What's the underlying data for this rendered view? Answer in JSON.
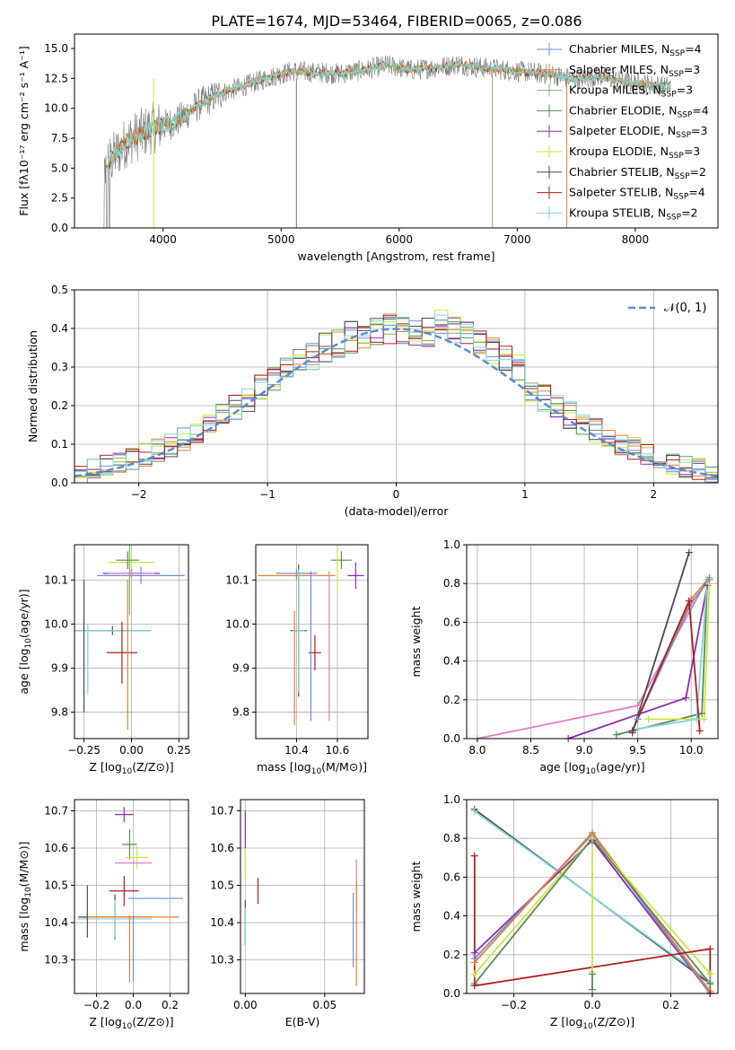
{
  "figure": {
    "title": "PLATE=1674, MJD=53464, FIBERID=0065, z=0.086"
  },
  "colors": {
    "chabrier_miles": "#6b8fd6",
    "salpeter_miles": "#ee7f2f",
    "kroupa_miles": "#7eb26d",
    "chabrier_elodie": "#5a8a5a",
    "salpeter_elodie": "#8e2bb0",
    "kroupa_elodie": "#c9e640",
    "chabrier_stelib": "#4a4a4a",
    "salpeter_stelib": "#b01c1c",
    "kroupa_stelib": "#7fd8dc",
    "extra_pink": "#e07cc2",
    "normal_line": "#5b8bd0",
    "spectrum_gray": "#777777"
  },
  "chart_data": [
    {
      "id": "spectrum",
      "type": "line",
      "xlabel": "wavelength [Angstrom, rest frame]",
      "ylabel": "Flux [fλ10⁻¹⁷ erg cm⁻² s⁻¹ A⁻¹]",
      "xlim": [
        3250,
        8700
      ],
      "ylim": [
        0,
        16.2
      ],
      "xticks": [
        4000,
        5000,
        6000,
        7000,
        8000
      ],
      "xtick_labels": [
        "4000",
        "5000",
        "6000",
        "7000",
        "8000"
      ],
      "yticks": [
        0,
        2.5,
        5,
        7.5,
        10,
        12.5,
        15
      ],
      "ytick_labels": [
        "0.0",
        "2.5",
        "5.0",
        "7.5",
        "10.0",
        "12.5",
        "15.0"
      ],
      "grid": false,
      "legend": "right",
      "continuum_x": [
        3500,
        3700,
        3900,
        4000,
        4100,
        4300,
        4500,
        4700,
        4900,
        5100,
        5300,
        5500,
        5700,
        5900,
        6100,
        6300,
        6500,
        6700,
        6900,
        7100,
        7300,
        7500,
        7700,
        7900,
        8100,
        8300
      ],
      "continuum_y": [
        5.0,
        7.3,
        8.3,
        8.6,
        8.8,
        10.3,
        11.3,
        11.9,
        12.6,
        13.1,
        13.0,
        12.9,
        13.2,
        13.6,
        13.2,
        13.4,
        13.7,
        13.4,
        13.2,
        13.0,
        12.8,
        12.4,
        12.7,
        12.2,
        12.0,
        11.8
      ],
      "series": [
        {
          "name": "Chabrier MILES, N_SSP=4",
          "label_main": "Chabrier MILES, N",
          "label_sub": "SSP",
          "label_tail": "=4"
        },
        {
          "name": "Salpeter MILES, N_SSP=3",
          "label_main": "Salpeter MILES, N",
          "label_sub": "SSP",
          "label_tail": "=3"
        },
        {
          "name": "Kroupa MILES, N_SSP=3",
          "label_main": "Kroupa MILES, N",
          "label_sub": "SSP",
          "label_tail": "=3"
        },
        {
          "name": "Chabrier ELODIE, N_SSP=4",
          "label_main": "Chabrier ELODIE, N",
          "label_sub": "SSP",
          "label_tail": "=4"
        },
        {
          "name": "Salpeter ELODIE, N_SSP=3",
          "label_main": "Salpeter ELODIE, N",
          "label_sub": "SSP",
          "label_tail": "=3"
        },
        {
          "name": "Kroupa ELODIE, N_SSP=3",
          "label_main": "Kroupa ELODIE, N",
          "label_sub": "SSP",
          "label_tail": "=3"
        },
        {
          "name": "Chabrier STELIB, N_SSP=2",
          "label_main": "Chabrier STELIB, N",
          "label_sub": "SSP",
          "label_tail": "=2"
        },
        {
          "name": "Salpeter STELIB, N_SSP=4",
          "label_main": "Salpeter STELIB, N",
          "label_sub": "SSP",
          "label_tail": "=4"
        },
        {
          "name": "Kroupa STELIB, N_SSP=2",
          "label_main": "Kroupa STELIB, N",
          "label_sub": "SSP",
          "label_tail": "=2"
        }
      ]
    },
    {
      "id": "histogram",
      "type": "line",
      "xlabel": "(data-model)/error",
      "ylabel": "Normed distribution",
      "xlim": [
        -2.5,
        2.5
      ],
      "ylim": [
        0,
        0.5
      ],
      "xticks": [
        -2,
        -1,
        0,
        1,
        2
      ],
      "xtick_labels": [
        "−2",
        "−1",
        "0",
        "1",
        "2"
      ],
      "yticks": [
        0,
        0.1,
        0.2,
        0.3,
        0.4,
        0.5
      ],
      "ytick_labels": [
        "0.0",
        "0.1",
        "0.2",
        "0.3",
        "0.4",
        "0.5"
      ],
      "grid": true,
      "legend": "top-right",
      "normal_label": "𝒩(0, 1)",
      "normal_mean": 0,
      "normal_sigma": 1,
      "bin_width": 0.1
    },
    {
      "id": "age_vs_z",
      "type": "scatter",
      "xlabel": "Z [log10(Z/Z⊙)]",
      "xlabel_main": "Z [log",
      "xlabel_sub": "10",
      "xlabel_tail": "(Z/Z⊙)]",
      "ylabel": "age [log10(age/yr)]",
      "ylabel_main": "age  [log",
      "ylabel_sub": "10",
      "ylabel_tail": "(age/yr)]",
      "xlim": [
        -0.3,
        0.3
      ],
      "ylim": [
        9.74,
        10.18
      ],
      "xticks": [
        -0.25,
        0,
        0.25
      ],
      "xtick_labels": [
        "−0.25",
        "0.00",
        "0.25"
      ],
      "yticks": [
        9.8,
        9.9,
        10.0,
        10.1
      ],
      "ytick_labels": [
        "9.8",
        "9.9",
        "10.0",
        "10.1"
      ],
      "grid": true,
      "points": [
        {
          "x": 0.0,
          "y": 10.14,
          "xerr": 0.12,
          "yerr": 0.03,
          "c": "kroupa_elodie"
        },
        {
          "x": -0.02,
          "y": 10.145,
          "xerr": 0.06,
          "yerr": 0.02,
          "c": "chabrier_elodie"
        },
        {
          "x": 0.05,
          "y": 10.11,
          "xerr": 0.23,
          "yerr": 0.02,
          "c": "chabrier_miles"
        },
        {
          "x": 0.0,
          "y": 10.115,
          "xerr": 0.15,
          "yerr": 0.01,
          "c": "salpeter_elodie"
        },
        {
          "x": 0.0,
          "y": 10.115,
          "xerr": 0.12,
          "yerr": 0.01,
          "c": "extra_pink"
        },
        {
          "x": -0.1,
          "y": 9.985,
          "xerr": 0.2,
          "yerr": 0.01,
          "c": "chabrier_stelib"
        },
        {
          "x": -0.1,
          "y": 9.985,
          "xerr": 0.2,
          "yerr": 0.0,
          "c": "kroupa_stelib"
        },
        {
          "x": -0.25,
          "y": 9.95,
          "xerr": 0.0,
          "yerr": 0.15,
          "c": "chabrier_stelib"
        },
        {
          "x": -0.23,
          "y": 9.92,
          "xerr": 0.0,
          "yerr": 0.08,
          "c": "kroupa_stelib"
        },
        {
          "x": -0.05,
          "y": 9.935,
          "xerr": 0.08,
          "yerr": 0.07,
          "c": "salpeter_stelib"
        },
        {
          "x": -0.02,
          "y": 9.93,
          "xerr": 0.0,
          "yerr": 0.17,
          "c": "salpeter_miles"
        },
        {
          "x": -0.01,
          "y": 10.1,
          "xerr": 0.0,
          "yerr": 0.08,
          "c": "kroupa_miles"
        }
      ]
    },
    {
      "id": "age_vs_mass",
      "type": "scatter",
      "xlabel": "mass [log10(M/M⊙)]",
      "xlabel_main": "mass [log",
      "xlabel_sub": "10",
      "xlabel_tail": "(M/M⊙)]",
      "ylabel": "",
      "xlim": [
        10.2,
        10.75
      ],
      "ylim": [
        9.74,
        10.18
      ],
      "xticks": [
        10.4,
        10.6
      ],
      "xtick_labels": [
        "10.4",
        "10.6"
      ],
      "yticks": [
        9.8,
        9.9,
        10.0,
        10.1
      ],
      "ytick_labels": [
        "9.8",
        "9.9",
        "10.0",
        "10.1"
      ],
      "grid": true,
      "points": [
        {
          "x": 10.62,
          "y": 10.145,
          "xerr": 0.05,
          "yerr": 0.02,
          "c": "chabrier_elodie"
        },
        {
          "x": 10.6,
          "y": 10.12,
          "xerr": 0.0,
          "yerr": 0.05,
          "c": "kroupa_elodie"
        },
        {
          "x": 10.69,
          "y": 10.11,
          "xerr": 0.04,
          "yerr": 0.03,
          "c": "salpeter_elodie"
        },
        {
          "x": 10.4,
          "y": 10.11,
          "xerr": 0.19,
          "yerr": 0.01,
          "c": "salpeter_miles"
        },
        {
          "x": 10.4,
          "y": 10.115,
          "xerr": 0.1,
          "yerr": 0.01,
          "c": "chabrier_miles"
        },
        {
          "x": 10.41,
          "y": 9.985,
          "xerr": 0.04,
          "yerr": 0.15,
          "c": "chabrier_stelib"
        },
        {
          "x": 10.41,
          "y": 9.985,
          "xerr": 0.03,
          "yerr": 0.14,
          "c": "kroupa_stelib"
        },
        {
          "x": 10.49,
          "y": 9.935,
          "xerr": 0.03,
          "yerr": 0.04,
          "c": "salpeter_stelib"
        },
        {
          "x": 10.47,
          "y": 9.95,
          "xerr": 0.0,
          "yerr": 0.17,
          "c": "chabrier_miles"
        },
        {
          "x": 10.56,
          "y": 9.95,
          "xerr": 0.0,
          "yerr": 0.17,
          "c": "extra_pink"
        },
        {
          "x": 10.39,
          "y": 9.9,
          "xerr": 0.0,
          "yerr": 0.13,
          "c": "salpeter_miles"
        }
      ]
    },
    {
      "id": "massweight_vs_age",
      "type": "line",
      "xlabel": "age  [log10(age/yr)]",
      "xlabel_main": "age  [log",
      "xlabel_sub": "10",
      "xlabel_tail": "(age/yr)]",
      "ylabel": "mass weight",
      "xlim": [
        7.9,
        10.25
      ],
      "ylim": [
        0,
        1
      ],
      "xticks": [
        8.0,
        8.5,
        9.0,
        9.5,
        10.0
      ],
      "xtick_labels": [
        "8.0",
        "8.5",
        "9.0",
        "9.5",
        "10.0"
      ],
      "yticks": [
        0,
        0.2,
        0.4,
        0.6,
        0.8,
        1.0
      ],
      "ytick_labels": [
        "0.0",
        "0.2",
        "0.4",
        "0.6",
        "0.8",
        "1.0"
      ],
      "grid": true,
      "series": [
        {
          "c": "extra_pink",
          "x": [
            8.0,
            9.5,
            10.15
          ],
          "y": [
            0.0,
            0.17,
            0.82
          ]
        },
        {
          "c": "salpeter_elodie",
          "x": [
            8.85,
            9.95,
            10.15
          ],
          "y": [
            0.0,
            0.21,
            0.79
          ]
        },
        {
          "c": "chabrier_elodie",
          "x": [
            9.3,
            10.1,
            10.15
          ],
          "y": [
            0.02,
            0.13,
            0.8
          ]
        },
        {
          "c": "kroupa_elodie",
          "x": [
            9.6,
            10.12,
            10.17
          ],
          "y": [
            0.1,
            0.1,
            0.8
          ]
        },
        {
          "c": "kroupa_stelib",
          "x": [
            9.5,
            10.05,
            10.15
          ],
          "y": [
            0.05,
            0.1,
            0.82
          ]
        },
        {
          "c": "salpeter_miles",
          "x": [
            9.5,
            10.0,
            10.17
          ],
          "y": [
            0.1,
            0.72,
            0.83
          ]
        },
        {
          "c": "chabrier_miles",
          "x": [
            9.5,
            10.0,
            10.17
          ],
          "y": [
            0.1,
            0.7,
            0.82
          ]
        },
        {
          "c": "salpeter_stelib",
          "x": [
            9.45,
            9.98,
            10.08
          ],
          "y": [
            0.04,
            0.71,
            0.04
          ]
        },
        {
          "c": "chabrier_stelib",
          "x": [
            9.45,
            9.98
          ],
          "y": [
            0.03,
            0.96
          ]
        }
      ]
    },
    {
      "id": "mass_vs_z",
      "type": "scatter",
      "xlabel": "Z [log10(Z/Z⊙)]",
      "xlabel_main": "Z [log",
      "xlabel_sub": "10",
      "xlabel_tail": "(Z/Z⊙)]",
      "ylabel": "mass [log10(M/M⊙)]",
      "ylabel_main": "mass [log",
      "ylabel_sub": "10",
      "ylabel_tail": "(M/M⊙)]",
      "xlim": [
        -0.32,
        0.3
      ],
      "ylim": [
        10.21,
        10.73
      ],
      "xticks": [
        -0.2,
        0,
        0.2
      ],
      "xtick_labels": [
        "−0.2",
        "0.0",
        "0.2"
      ],
      "yticks": [
        10.3,
        10.4,
        10.5,
        10.6,
        10.7
      ],
      "ytick_labels": [
        "10.3",
        "10.4",
        "10.5",
        "10.6",
        "10.7"
      ],
      "grid": true,
      "points": [
        {
          "x": -0.05,
          "y": 10.69,
          "xerr": 0.05,
          "yerr": 0.02,
          "c": "salpeter_elodie"
        },
        {
          "x": -0.02,
          "y": 10.61,
          "xerr": 0.04,
          "yerr": 0.04,
          "c": "chabrier_elodie"
        },
        {
          "x": 0.02,
          "y": 10.575,
          "xerr": 0.06,
          "yerr": 0.03,
          "c": "kroupa_elodie"
        },
        {
          "x": 0.0,
          "y": 10.56,
          "xerr": 0.1,
          "yerr": 0.0,
          "c": "extra_pink"
        },
        {
          "x": -0.05,
          "y": 10.485,
          "xerr": 0.08,
          "yerr": 0.04,
          "c": "salpeter_stelib"
        },
        {
          "x": 0.12,
          "y": 10.465,
          "xerr": 0.15,
          "yerr": 0.0,
          "c": "chabrier_miles"
        },
        {
          "x": -0.1,
          "y": 10.415,
          "xerr": 0.2,
          "yerr": 0.06,
          "c": "chabrier_stelib"
        },
        {
          "x": -0.1,
          "y": 10.41,
          "xerr": 0.2,
          "yerr": 0.05,
          "c": "kroupa_stelib"
        },
        {
          "x": 0.0,
          "y": 10.415,
          "xerr": 0.25,
          "yerr": 0.0,
          "c": "salpeter_miles"
        },
        {
          "x": -0.02,
          "y": 10.33,
          "xerr": 0.0,
          "yerr": 0.09,
          "c": "salpeter_miles"
        },
        {
          "x": 0.0,
          "y": 10.33,
          "xerr": 0.0,
          "yerr": 0.09,
          "c": "chabrier_miles"
        },
        {
          "x": -0.25,
          "y": 10.43,
          "xerr": 0.0,
          "yerr": 0.07,
          "c": "chabrier_stelib"
        }
      ]
    },
    {
      "id": "mass_vs_ebv",
      "type": "scatter",
      "xlabel": "E(B-V)",
      "ylabel": "",
      "xlim": [
        -0.003,
        0.075
      ],
      "ylim": [
        10.21,
        10.73
      ],
      "xticks": [
        0.0,
        0.05
      ],
      "xtick_labels": [
        "0.00",
        "0.05"
      ],
      "yticks": [
        10.3,
        10.4,
        10.5,
        10.6,
        10.7
      ],
      "ytick_labels": [
        "10.3",
        "10.4",
        "10.5",
        "10.6",
        "10.7"
      ],
      "grid": true,
      "points": [
        {
          "x": 0.0,
          "y": 10.65,
          "xerr": 0.0,
          "yerr": 0.05,
          "c": "salpeter_elodie"
        },
        {
          "x": 0.0,
          "y": 10.56,
          "xerr": 0.0,
          "yerr": 0.04,
          "c": "kroupa_elodie"
        },
        {
          "x": 0.0,
          "y": 10.4,
          "xerr": 0.0,
          "yerr": 0.06,
          "c": "chabrier_stelib"
        },
        {
          "x": 0.0,
          "y": 10.39,
          "xerr": 0.0,
          "yerr": 0.05,
          "c": "kroupa_stelib"
        },
        {
          "x": 0.008,
          "y": 10.485,
          "xerr": 0.0,
          "yerr": 0.035,
          "c": "salpeter_stelib"
        },
        {
          "x": 0.07,
          "y": 10.5,
          "xerr": 0.0,
          "yerr": 0.07,
          "c": "extra_pink"
        },
        {
          "x": 0.07,
          "y": 10.37,
          "xerr": 0.0,
          "yerr": 0.14,
          "c": "salpeter_miles"
        },
        {
          "x": 0.068,
          "y": 10.38,
          "xerr": 0.0,
          "yerr": 0.1,
          "c": "chabrier_miles"
        }
      ]
    },
    {
      "id": "massweight_vs_z",
      "type": "line",
      "xlabel": "Z [log10(Z/Z⊙)]",
      "xlabel_main": "Z [log",
      "xlabel_sub": "10",
      "xlabel_tail": "(Z/Z⊙)]",
      "ylabel": "mass weight",
      "xlim": [
        -0.32,
        0.32
      ],
      "ylim": [
        0,
        1
      ],
      "xticks": [
        -0.2,
        0,
        0.2
      ],
      "xtick_labels": [
        "−0.2",
        "0.0",
        "0.2"
      ],
      "yticks": [
        0,
        0.2,
        0.4,
        0.6,
        0.8,
        1.0
      ],
      "ytick_labels": [
        "0.0",
        "0.2",
        "0.4",
        "0.6",
        "0.8",
        "1.0"
      ],
      "grid": true,
      "series": [
        {
          "c": "chabrier_stelib",
          "x": [
            -0.3,
            0.3
          ],
          "y": [
            0.95,
            0.05
          ]
        },
        {
          "c": "kroupa_stelib",
          "x": [
            -0.3,
            0.3
          ],
          "y": [
            0.94,
            0.06
          ]
        },
        {
          "c": "salpeter_elodie",
          "x": [
            -0.3,
            0.0,
            0.3
          ],
          "y": [
            0.21,
            0.79,
            0.0
          ]
        },
        {
          "c": "chabrier_miles",
          "x": [
            -0.3,
            0.0,
            0.3
          ],
          "y": [
            0.18,
            0.82,
            0.0
          ]
        },
        {
          "c": "salpeter_miles",
          "x": [
            -0.3,
            0.0,
            0.3
          ],
          "y": [
            0.16,
            0.83,
            0.01
          ]
        },
        {
          "c": "kroupa_elodie",
          "x": [
            -0.3,
            0.0,
            0.3
          ],
          "y": [
            0.1,
            0.8,
            0.1
          ]
        },
        {
          "c": "chabrier_elodie",
          "x": [
            -0.3,
            0.0,
            0.3
          ],
          "y": [
            0.05,
            0.8,
            0.05
          ]
        },
        {
          "c": "salpeter_stelib",
          "x": [
            -0.3,
            -0.3,
            0.3,
            0.3
          ],
          "y": [
            0.71,
            0.04,
            0.23,
            0.0
          ]
        },
        {
          "c": "kroupa_elodie",
          "x": [
            0.0,
            0.0
          ],
          "y": [
            0.11,
            0.8
          ]
        },
        {
          "c": "chabrier_elodie",
          "x": [
            0.0,
            0.0
          ],
          "y": [
            0.02,
            0.1
          ]
        }
      ]
    }
  ]
}
